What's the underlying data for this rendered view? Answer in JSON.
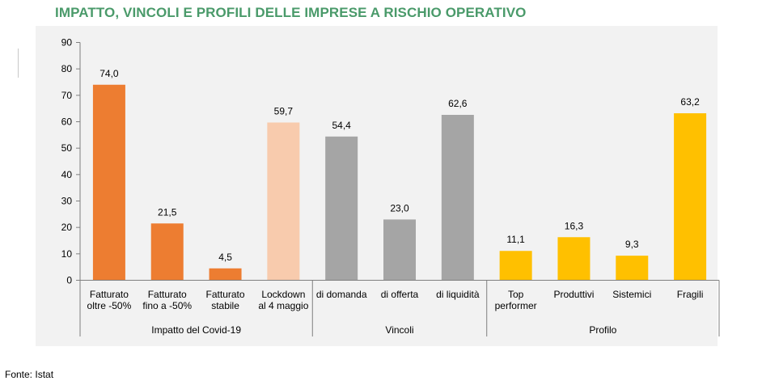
{
  "title": "IMPATTO, VINCOLI E PROFILI DELLE IMPRESE A RISCHIO OPERATIVO",
  "source": "Fonte: Istat",
  "chart_data": {
    "type": "bar",
    "title": "IMPATTO, VINCOLI E PROFILI DELLE IMPRESE A RISCHIO OPERATIVO",
    "xlabel": "",
    "ylabel": "",
    "ylim": [
      0,
      90
    ],
    "yticks": [
      "0",
      "10",
      "20",
      "30",
      "40",
      "50",
      "60",
      "70",
      "80",
      "90"
    ],
    "grid": false,
    "legend": "none",
    "categories": [
      [
        "Fatturato",
        "oltre -50%"
      ],
      [
        "Fatturato",
        "fino a -50%"
      ],
      [
        "Fatturato",
        "stabile"
      ],
      [
        "Lockdown",
        "al 4 maggio"
      ],
      [
        "di domanda"
      ],
      [
        "di offerta"
      ],
      [
        "di liquidità"
      ],
      [
        "Top",
        "performer"
      ],
      [
        "Produttivi"
      ],
      [
        "Sistemici"
      ],
      [
        "Fragili"
      ]
    ],
    "values": [
      74.0,
      21.5,
      4.5,
      59.7,
      54.4,
      23.0,
      62.6,
      11.1,
      16.3,
      9.3,
      63.2
    ],
    "value_labels": [
      "74,0",
      "21,5",
      "4,5",
      "59,7",
      "54,4",
      "23,0",
      "62,6",
      "11,1",
      "16,3",
      "9,3",
      "63,2"
    ],
    "colors": [
      "#ed7d31",
      "#ed7d31",
      "#ed7d31",
      "#f8cbad",
      "#a5a5a5",
      "#a5a5a5",
      "#a5a5a5",
      "#ffc000",
      "#ffc000",
      "#ffc000",
      "#ffc000"
    ],
    "groups": [
      {
        "label": "Impatto del Covid-19",
        "start": 0,
        "end": 3
      },
      {
        "label": "Vincoli",
        "start": 4,
        "end": 6
      },
      {
        "label": "Profilo",
        "start": 7,
        "end": 10
      }
    ]
  }
}
